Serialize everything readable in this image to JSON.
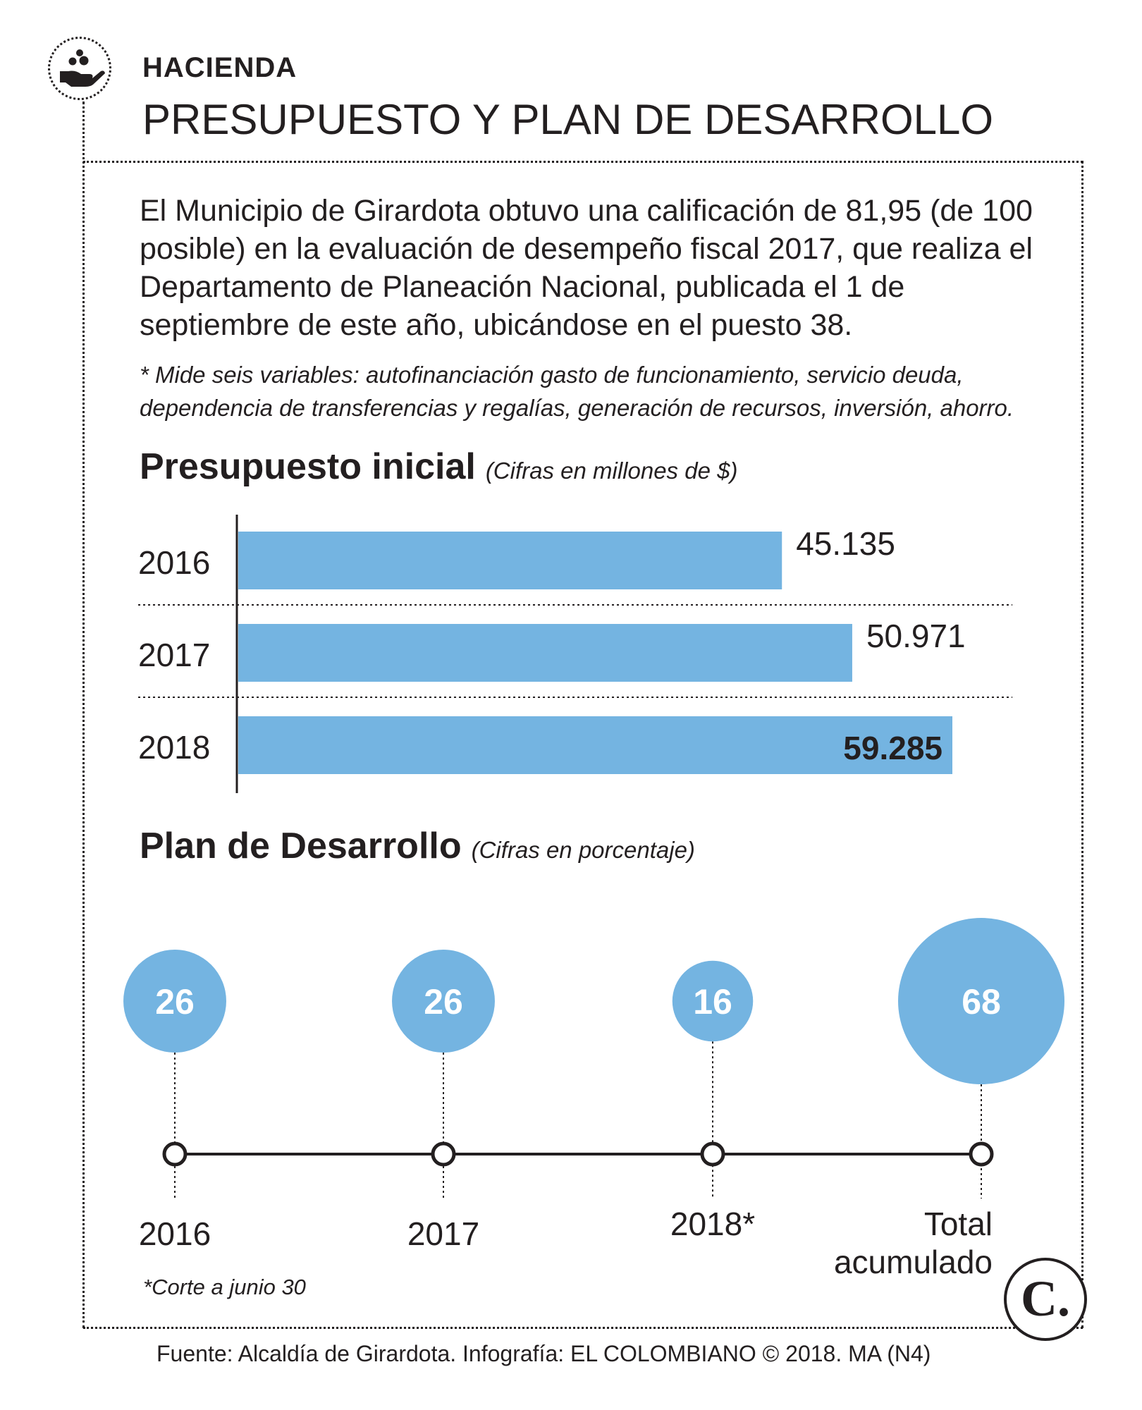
{
  "header": {
    "section": "HACIENDA",
    "title": "PRESUPUESTO Y PLAN DE DESARROLLO",
    "icon": "hand-coins-icon"
  },
  "intro": {
    "text": "El Municipio de Girardota obtuvo una calificación de 81,95 (de 100 posible) en la evaluación de desempeño fiscal 2017, que realiza el Departamento de Planeación Nacional, publicada el 1 de septiembre de este año, ubicándose en el puesto 38.",
    "note": "* Mide seis variables: autofinanciación gasto de funcionamiento, servicio deuda, dependencia de transferencias y regalías, generación de recursos, inversión, ahorro."
  },
  "colors": {
    "accent": "#74b4e1",
    "text": "#231f20"
  },
  "chart_data": [
    {
      "type": "bar",
      "orientation": "horizontal",
      "title": "Presupuesto inicial",
      "subtitle": "(Cifras en millones de $)",
      "categories": [
        "2016",
        "2017",
        "2018"
      ],
      "values": [
        45135,
        50971,
        59285
      ],
      "value_labels": [
        "45.135",
        "50.971",
        "59.285"
      ]
    },
    {
      "type": "bubble-timeline",
      "title": "Plan de Desarrollo",
      "subtitle": "(Cifras en porcentaje)",
      "categories": [
        "2016",
        "2017",
        "2018*",
        "Total acumulado"
      ],
      "values": [
        26,
        26,
        16,
        68
      ],
      "value_labels": [
        "26",
        "26",
        "16",
        "68"
      ]
    }
  ],
  "footnote": "*Corte a junio 30",
  "source": "Fuente: Alcaldía de Girardota. Infografía: EL COLOMBIANO © 2018. MA (N4)",
  "brand": {
    "letter": "C.",
    "icon": "el-colombiano-logo"
  }
}
